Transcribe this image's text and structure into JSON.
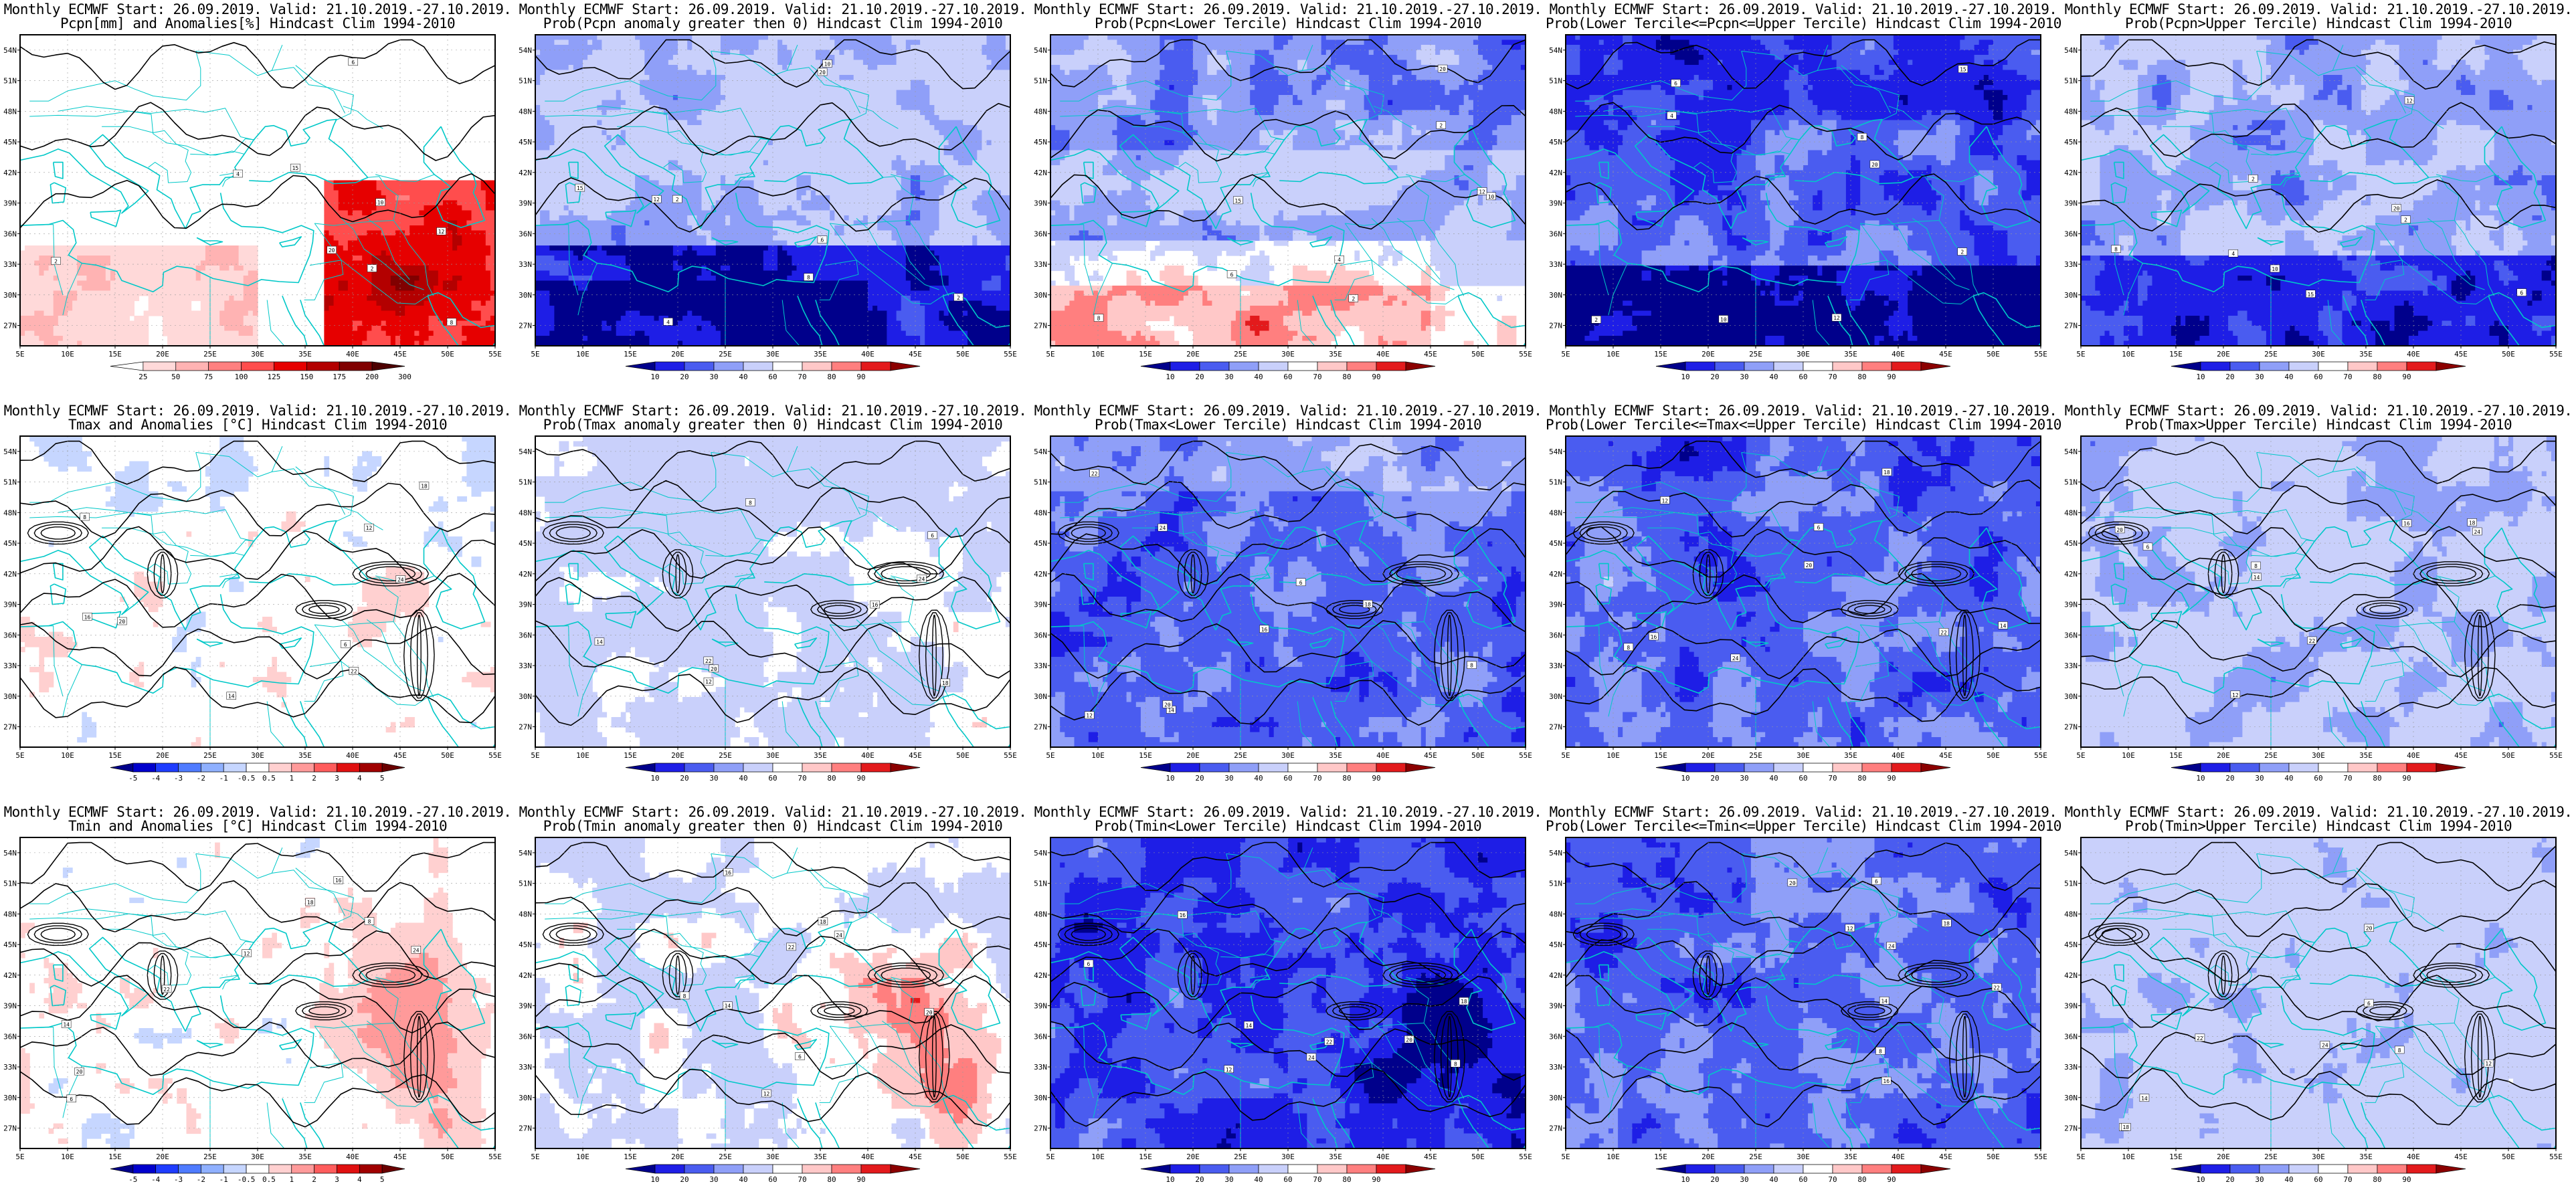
{
  "header": "Monthly ECMWF Start: 26.09.2019. Valid: 21.10.2019.-27.10.2019.",
  "lat_labels": [
    "54N",
    "51N",
    "48N",
    "45N",
    "42N",
    "39N",
    "36N",
    "33N",
    "30N",
    "27N"
  ],
  "lon_labels": [
    "5E",
    "10E",
    "15E",
    "20E",
    "25E",
    "30E",
    "35E",
    "40E",
    "45E",
    "50E",
    "55E"
  ],
  "colorbars": {
    "pcpn_anom": {
      "ticks": [
        "25",
        "50",
        "75",
        "100",
        "125",
        "150",
        "175",
        "200",
        "300"
      ],
      "colors": [
        "#ffffff",
        "#ffd9d9",
        "#ffb3b3",
        "#ff8080",
        "#ff4d4d",
        "#e60000",
        "#b30000",
        "#800000",
        "#4d0000"
      ]
    },
    "temp_anom": {
      "ticks": [
        "-5",
        "-4",
        "-3",
        "-2",
        "-1",
        "-0.5",
        "0.5",
        "1",
        "2",
        "3",
        "4",
        "5"
      ],
      "colors": [
        "#00008b",
        "#0000cd",
        "#1e3cff",
        "#4f7bff",
        "#8fb0ff",
        "#c6d6ff",
        "#ffffff",
        "#ffd0d0",
        "#ff9a9a",
        "#ff5c5c",
        "#e01010",
        "#a00000",
        "#6a0000"
      ]
    },
    "prob": {
      "ticks": [
        "10",
        "20",
        "30",
        "40",
        "60",
        "70",
        "80",
        "90"
      ],
      "colors": [
        "#00008b",
        "#1e1ee6",
        "#4a5cf0",
        "#8f9ff8",
        "#c9d0fb",
        "#ffffff",
        "#ffc8c8",
        "#ff7f7f",
        "#e31a1c",
        "#8b0000"
      ]
    }
  },
  "panels": [
    {
      "title1": "Monthly ECMWF Start: 26.09.2019. Valid: 21.10.2019.-27.10.2019.",
      "title2": "Pcpn[mm] and Anomalies[%] Hindcast Clim 1994-2010",
      "colorbar": "pcpn_anom",
      "field": "pcpn_anom"
    },
    {
      "title1": "Monthly ECMWF Start: 26.09.2019. Valid: 21.10.2019.-27.10.2019.",
      "title2": "Prob(Pcpn anomaly greater then 0) Hindcast Clim 1994-2010",
      "colorbar": "prob",
      "field": "pcpn_pos"
    },
    {
      "title1": "Monthly ECMWF Start: 26.09.2019. Valid: 21.10.2019.-27.10.2019.",
      "title2": "Prob(Pcpn<Lower Tercile) Hindcast Clim 1994-2010",
      "colorbar": "prob",
      "field": "pcpn_low"
    },
    {
      "title1": "Monthly ECMWF Start: 26.09.2019. Valid: 21.10.2019.-27.10.2019.",
      "title2": "Prob(Lower Tercile<=Pcpn<=Upper Tercile) Hindcast Clim 1994-2010",
      "colorbar": "prob",
      "field": "pcpn_mid"
    },
    {
      "title1": "Monthly ECMWF Start: 26.09.2019. Valid: 21.10.2019.-27.10.2019.",
      "title2": "Prob(Pcpn>Upper Tercile) Hindcast Clim 1994-2010",
      "colorbar": "prob",
      "field": "pcpn_up"
    },
    {
      "title1": "Monthly ECMWF Start: 26.09.2019. Valid: 21.10.2019.-27.10.2019.",
      "title2": "Tmax and Anomalies [°C] Hindcast Clim 1994-2010",
      "colorbar": "temp_anom",
      "field": "tmax_anom"
    },
    {
      "title1": "Monthly ECMWF Start: 26.09.2019. Valid: 21.10.2019.-27.10.2019.",
      "title2": "Prob(Tmax anomaly greater then 0) Hindcast Clim 1994-2010",
      "colorbar": "prob",
      "field": "tmax_pos"
    },
    {
      "title1": "Monthly ECMWF Start: 26.09.2019. Valid: 21.10.2019.-27.10.2019.",
      "title2": "Prob(Tmax<Lower Tercile) Hindcast Clim 1994-2010",
      "colorbar": "prob",
      "field": "tmax_low"
    },
    {
      "title1": "Monthly ECMWF Start: 26.09.2019. Valid: 21.10.2019.-27.10.2019.",
      "title2": "Prob(Lower Tercile<=Tmax<=Upper Tercile) Hindcast Clim 1994-2010",
      "colorbar": "prob",
      "field": "tmax_mid"
    },
    {
      "title1": "Monthly ECMWF Start: 26.09.2019. Valid: 21.10.2019.-27.10.2019.",
      "title2": "Prob(Tmax>Upper Tercile) Hindcast Clim 1994-2010",
      "colorbar": "prob",
      "field": "tmax_up"
    },
    {
      "title1": "Monthly ECMWF Start: 26.09.2019. Valid: 21.10.2019.-27.10.2019.",
      "title2": "Tmin and Anomalies [°C] Hindcast Clim 1994-2010",
      "colorbar": "temp_anom",
      "field": "tmin_anom"
    },
    {
      "title1": "Monthly ECMWF Start: 26.09.2019. Valid: 21.10.2019.-27.10.2019.",
      "title2": "Prob(Tmin anomaly greater then 0) Hindcast Clim 1994-2010",
      "colorbar": "prob",
      "field": "tmin_pos"
    },
    {
      "title1": "Monthly ECMWF Start: 26.09.2019. Valid: 21.10.2019.-27.10.2019.",
      "title2": "Prob(Tmin<Lower Tercile) Hindcast Clim 1994-2010",
      "colorbar": "prob",
      "field": "tmin_low"
    },
    {
      "title1": "Monthly ECMWF Start: 26.09.2019. Valid: 21.10.2019.-27.10.2019.",
      "title2": "Prob(Lower Tercile<=Tmin<=Upper Tercile) Hindcast Clim 1994-2010",
      "colorbar": "prob",
      "field": "tmin_mid"
    },
    {
      "title1": "Monthly ECMWF Start: 26.09.2019. Valid: 21.10.2019.-27.10.2019.",
      "title2": "Prob(Tmin>Upper Tercile) Hindcast Clim 1994-2010",
      "colorbar": "prob",
      "field": "tmin_up"
    }
  ],
  "colors": {
    "coast": "#00c8c8",
    "contour": "#000000",
    "frame": "#000000"
  }
}
